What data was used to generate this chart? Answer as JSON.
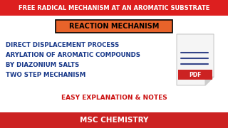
{
  "title_text": "FREE RADICAL MECHANISM AT AN AROMATIC SUBSTRATE",
  "title_bg": "#dd1f1f",
  "title_color": "#ffffff",
  "subtitle_box_text": "REACTION MECHANISM",
  "subtitle_box_bg": "#e8632a",
  "subtitle_box_border": "#000000",
  "subtitle_text_color": "#000000",
  "bullet_lines": [
    "DIRECT DISPLACEMENT PROCESS",
    "ARYLATION OF AROMATIC COMPOUNDS",
    "BY DIAZONIUM SALTS",
    "TWO STEP MECHANISM"
  ],
  "bullet_color": "#1a3a8a",
  "easy_text": "EASY EXPLANATION & NOTES",
  "easy_color": "#cc1111",
  "footer_text": "MSC CHEMISTRY",
  "footer_bg": "#cc2222",
  "footer_color": "#ffffff",
  "bg_color": "#ffffff",
  "pdf_doc_color": "#f5f5f5",
  "pdf_doc_border": "#cccccc",
  "pdf_label_bg": "#cc2222",
  "pdf_line_color": "#334488"
}
